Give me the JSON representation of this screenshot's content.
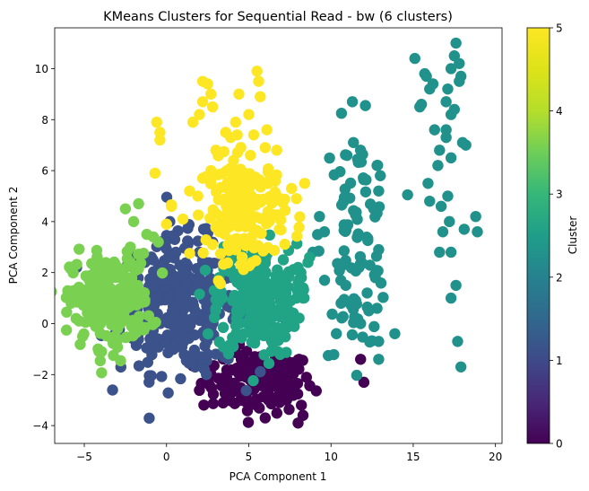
{
  "chart_data": {
    "type": "scatter",
    "title": "KMeans Clusters for Sequential Read - bw (6 clusters)",
    "xlabel": "PCA Component 1",
    "ylabel": "PCA Component 2",
    "xlim": [
      -6.8,
      20.4
    ],
    "ylim": [
      -4.7,
      11.6
    ],
    "xticks": [
      -5,
      0,
      5,
      10,
      15,
      20
    ],
    "yticks": [
      -4,
      -2,
      0,
      2,
      4,
      6,
      8,
      10
    ],
    "grid": false,
    "colorbar": {
      "label": "Cluster",
      "range": [
        0,
        5
      ],
      "ticks": [
        0,
        1,
        2,
        3,
        4,
        5
      ],
      "colormap": "viridis",
      "colors": [
        "#440154",
        "#3b528b",
        "#21918c",
        "#5ec962",
        "#fde725"
      ]
    },
    "clusters": [
      {
        "id": 0,
        "color": "#440154",
        "center": [
          5.5,
          -2.3
        ],
        "spread": [
          1.7,
          0.6
        ],
        "count": 140,
        "points": [
          [
            11.8,
            -1.4
          ],
          [
            12.0,
            -2.3
          ],
          [
            8.2,
            -3.2
          ],
          [
            8.0,
            -3.9
          ],
          [
            8.3,
            -3.6
          ],
          [
            7.5,
            -2.6
          ],
          [
            7.2,
            -1.3
          ],
          [
            6.0,
            -3.7
          ],
          [
            7.3,
            -3.0
          ]
        ]
      },
      {
        "id": 1,
        "color": "#3b528b",
        "center": [
          0.8,
          0.7
        ],
        "spread": [
          1.8,
          1.3
        ],
        "count": 330,
        "points": [
          [
            0.2,
            4.0
          ],
          [
            0.5,
            3.3
          ],
          [
            1.3,
            3.1
          ],
          [
            2.0,
            2.8
          ],
          [
            1.5,
            -1.5
          ],
          [
            2.3,
            -1.8
          ],
          [
            -1.0,
            -0.6
          ],
          [
            -1.5,
            0.2
          ],
          [
            3.0,
            0.8
          ],
          [
            3.0,
            -1.2
          ],
          [
            -0.5,
            2.0
          ]
        ]
      },
      {
        "id": 2,
        "color": "#21918c",
        "center": [
          11.5,
          3.3
        ],
        "spread": [
          1.0,
          2.2
        ],
        "count": 90,
        "points": [
          [
            15.1,
            10.4
          ],
          [
            15.4,
            8.5
          ],
          [
            15.5,
            8.6
          ],
          [
            15.7,
            9.8
          ],
          [
            15.8,
            9.7
          ],
          [
            16.0,
            9.2
          ],
          [
            16.2,
            9.4
          ],
          [
            16.3,
            7.6
          ],
          [
            16.6,
            6.8
          ],
          [
            16.5,
            6.2
          ],
          [
            16.7,
            4.6
          ],
          [
            16.8,
            3.6
          ],
          [
            16.6,
            2.8
          ],
          [
            17.0,
            8.7
          ],
          [
            17.1,
            9.2
          ],
          [
            17.3,
            10.0
          ],
          [
            17.5,
            10.5
          ],
          [
            17.6,
            11.0
          ],
          [
            17.8,
            10.2
          ],
          [
            17.8,
            9.5
          ],
          [
            17.9,
            9.7
          ],
          [
            17.5,
            8.4
          ],
          [
            17.3,
            8.2
          ],
          [
            17.0,
            7.6
          ],
          [
            17.0,
            7.3
          ],
          [
            17.3,
            6.5
          ],
          [
            17.1,
            5.0
          ],
          [
            17.2,
            4.0
          ],
          [
            17.3,
            2.8
          ],
          [
            17.3,
            1.0
          ],
          [
            17.6,
            1.5
          ],
          [
            17.7,
            -0.7
          ],
          [
            17.9,
            -1.7
          ],
          [
            18.0,
            7.1
          ],
          [
            18.2,
            7.0
          ],
          [
            18.1,
            3.7
          ],
          [
            18.8,
            4.2
          ],
          [
            18.9,
            3.6
          ],
          [
            15.9,
            5.5
          ],
          [
            16.0,
            4.8
          ],
          [
            11.3,
            8.7
          ],
          [
            12.8,
            6.2
          ],
          [
            13.0,
            5.8
          ],
          [
            12.9,
            5.2
          ],
          [
            12.6,
            4.5
          ],
          [
            12.9,
            2.9
          ],
          [
            12.7,
            1.8
          ],
          [
            12.8,
            0.6
          ],
          [
            12.9,
            -0.7
          ],
          [
            12.9,
            -1.4
          ],
          [
            12.3,
            0.5
          ],
          [
            12.2,
            1.2
          ],
          [
            11.5,
            0.9
          ],
          [
            10.9,
            1.5
          ],
          [
            10.6,
            1.7
          ],
          [
            11.8,
            0.0
          ],
          [
            11.7,
            2.2
          ],
          [
            9.3,
            4.2
          ],
          [
            9.6,
            3.6
          ],
          [
            8.9,
            2.8
          ]
        ]
      },
      {
        "id": 3,
        "color": "#21a386",
        "center": [
          5.5,
          0.9
        ],
        "spread": [
          1.2,
          1.1
        ],
        "count": 250,
        "points": [
          [
            8.0,
            2.2
          ],
          [
            8.2,
            1.8
          ],
          [
            8.6,
            2.4
          ],
          [
            8.7,
            2.6
          ],
          [
            8.3,
            1.0
          ],
          [
            7.9,
            1.0
          ],
          [
            8.0,
            1.6
          ],
          [
            7.1,
            2.5
          ],
          [
            3.2,
            1.8
          ],
          [
            3.4,
            1.0
          ],
          [
            2.9,
            1.3
          ],
          [
            3.0,
            0.6
          ],
          [
            6.7,
            -0.3
          ]
        ]
      },
      {
        "id": 4,
        "color": "#7ad151",
        "center": [
          -3.4,
          0.9
        ],
        "spread": [
          1.2,
          0.9
        ],
        "count": 230,
        "points": [
          [
            -2.5,
            4.5
          ],
          [
            -2.0,
            4.0
          ],
          [
            -1.7,
            4.7
          ],
          [
            -1.2,
            3.5
          ],
          [
            -0.8,
            3.4
          ],
          [
            -0.5,
            3.2
          ],
          [
            -2.2,
            3.0
          ],
          [
            -5.8,
            0.8
          ],
          [
            -5.6,
            1.3
          ],
          [
            -5.5,
            0.2
          ],
          [
            -5.1,
            -0.5
          ],
          [
            -4.3,
            2.0
          ],
          [
            -3.8,
            2.2
          ]
        ]
      },
      {
        "id": 5,
        "color": "#fde725",
        "center": [
          4.8,
          4.5
        ],
        "spread": [
          1.2,
          1.0
        ],
        "count": 170,
        "points": [
          [
            2.2,
            9.5
          ],
          [
            2.5,
            9.4
          ],
          [
            2.7,
            9.0
          ],
          [
            2.2,
            8.7
          ],
          [
            2.0,
            8.2
          ],
          [
            2.8,
            8.5
          ],
          [
            4.4,
            9.0
          ],
          [
            5.5,
            9.9
          ],
          [
            5.6,
            9.5
          ],
          [
            5.7,
            8.9
          ],
          [
            5.0,
            8.2
          ],
          [
            4.2,
            7.9
          ],
          [
            4.3,
            7.4
          ],
          [
            3.9,
            7.3
          ],
          [
            3.6,
            7.5
          ],
          [
            5.3,
            7.4
          ],
          [
            6.1,
            7.6
          ],
          [
            -0.6,
            7.9
          ],
          [
            -0.4,
            7.5
          ],
          [
            -0.4,
            7.2
          ],
          [
            1.6,
            7.9
          ],
          [
            3.0,
            6.8
          ],
          [
            5.1,
            6.6
          ],
          [
            6.0,
            6.9
          ],
          [
            6.7,
            6.8
          ],
          [
            2.7,
            6.0
          ],
          [
            2.2,
            5.7
          ],
          [
            1.4,
            5.2
          ],
          [
            1.9,
            5.0
          ],
          [
            -0.7,
            5.9
          ],
          [
            0.3,
            4.6
          ],
          [
            0.0,
            3.9
          ],
          [
            1.0,
            4.1
          ],
          [
            2.8,
            3.1
          ],
          [
            3.2,
            3.6
          ],
          [
            3.8,
            2.9
          ],
          [
            4.6,
            2.6
          ],
          [
            5.2,
            2.4
          ],
          [
            4.8,
            3.8
          ],
          [
            8.4,
            5.5
          ],
          [
            7.6,
            5.3
          ],
          [
            7.9,
            4.9
          ]
        ]
      }
    ]
  }
}
